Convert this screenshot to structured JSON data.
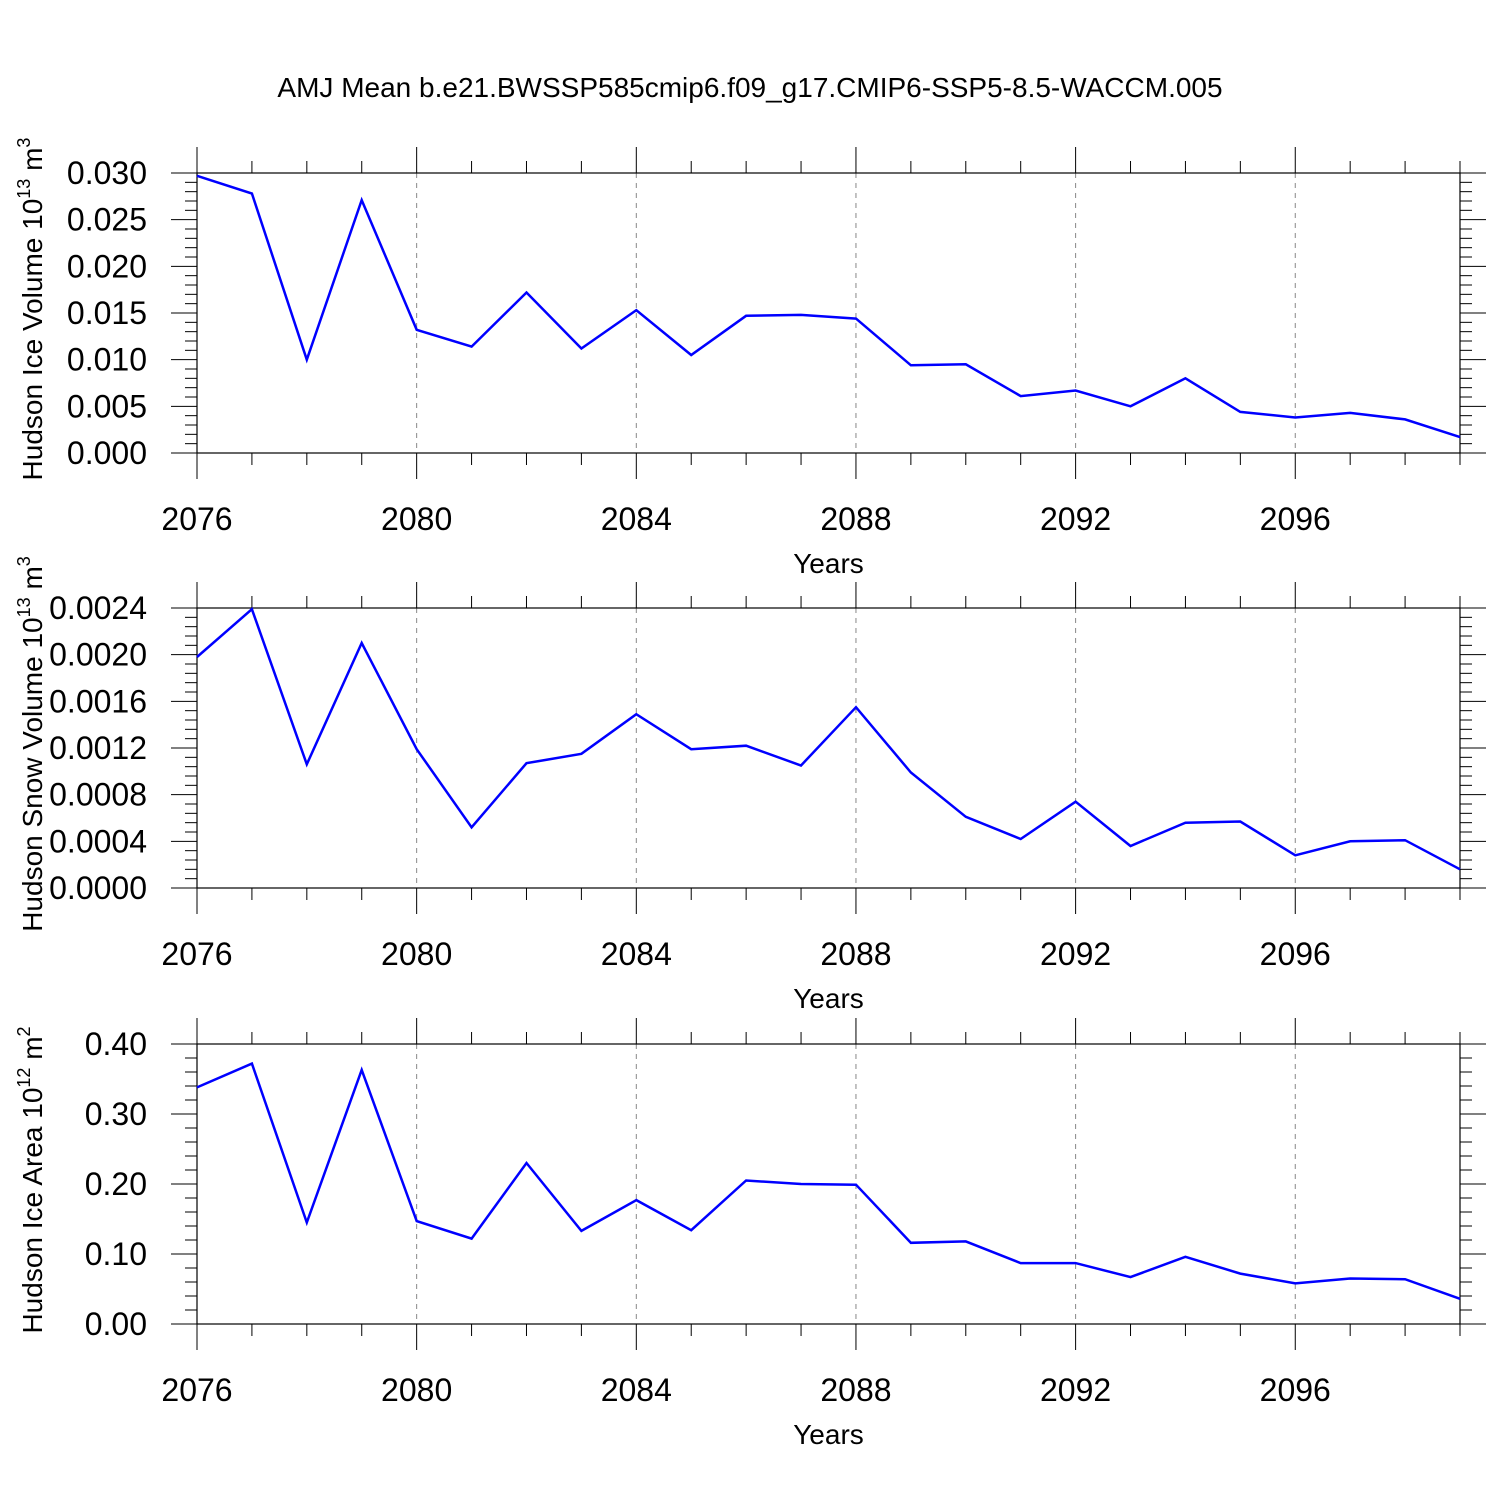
{
  "title": "AMJ Mean b.e21.BWSSP585cmip6.f09_g17.CMIP6-SSP5-8.5-WACCM.005",
  "colors": {
    "line": "#0000ff",
    "axis": "#000000",
    "grid": "#888888"
  },
  "chart_data": [
    {
      "type": "line",
      "ylabel_main": "Hudson Ice Volume 10",
      "ylabel_exp": "13",
      "ylabel_unit": "m",
      "ylabel_unit_exp": "3",
      "xlabel": "Years",
      "xlim": [
        2076,
        2099
      ],
      "ylim": [
        0,
        0.03
      ],
      "xticks": [
        2076,
        2080,
        2084,
        2088,
        2092,
        2096
      ],
      "yticks": [
        "0.000",
        "0.005",
        "0.010",
        "0.015",
        "0.020",
        "0.025",
        "0.030"
      ],
      "grid_x": true,
      "series": [
        {
          "x": [
            2076,
            2077,
            2078,
            2079,
            2080,
            2081,
            2082,
            2083,
            2084,
            2085,
            2086,
            2087,
            2088,
            2089,
            2090,
            2091,
            2092,
            2093,
            2094,
            2095,
            2096,
            2097,
            2098,
            2099
          ],
          "values": [
            0.0297,
            0.0278,
            0.01,
            0.0271,
            0.0132,
            0.0114,
            0.0172,
            0.0112,
            0.0153,
            0.0105,
            0.0147,
            0.0148,
            0.0144,
            0.0094,
            0.0095,
            0.0061,
            0.0067,
            0.005,
            0.008,
            0.0044,
            0.0038,
            0.0043,
            0.0036,
            0.0017
          ]
        }
      ]
    },
    {
      "type": "line",
      "ylabel_main": "Hudson Snow Volume 10",
      "ylabel_exp": "13",
      "ylabel_unit": "m",
      "ylabel_unit_exp": "3",
      "xlabel": "Years",
      "xlim": [
        2076,
        2099
      ],
      "ylim": [
        0,
        0.0024
      ],
      "xticks": [
        2076,
        2080,
        2084,
        2088,
        2092,
        2096
      ],
      "yticks": [
        "0.0000",
        "0.0004",
        "0.0008",
        "0.0012",
        "0.0016",
        "0.0020",
        "0.0024"
      ],
      "grid_x": true,
      "series": [
        {
          "x": [
            2076,
            2077,
            2078,
            2079,
            2080,
            2081,
            2082,
            2083,
            2084,
            2085,
            2086,
            2087,
            2088,
            2089,
            2090,
            2091,
            2092,
            2093,
            2094,
            2095,
            2096,
            2097,
            2098,
            2099
          ],
          "values": [
            0.00198,
            0.00239,
            0.00106,
            0.0021,
            0.00119,
            0.00052,
            0.00107,
            0.00115,
            0.00149,
            0.00119,
            0.00122,
            0.00105,
            0.00155,
            0.00099,
            0.00061,
            0.00042,
            0.00074,
            0.00036,
            0.00056,
            0.00057,
            0.00028,
            0.0004,
            0.00041,
            0.00016
          ]
        }
      ]
    },
    {
      "type": "line",
      "ylabel_main": "Hudson Ice Area 10",
      "ylabel_exp": "12",
      "ylabel_unit": "m",
      "ylabel_unit_exp": "2",
      "xlabel": "Years",
      "xlim": [
        2076,
        2099
      ],
      "ylim": [
        0,
        0.4
      ],
      "xticks": [
        2076,
        2080,
        2084,
        2088,
        2092,
        2096
      ],
      "yticks": [
        "0.00",
        "0.10",
        "0.20",
        "0.30",
        "0.40"
      ],
      "grid_x": true,
      "series": [
        {
          "x": [
            2076,
            2077,
            2078,
            2079,
            2080,
            2081,
            2082,
            2083,
            2084,
            2085,
            2086,
            2087,
            2088,
            2089,
            2090,
            2091,
            2092,
            2093,
            2094,
            2095,
            2096,
            2097,
            2098,
            2099
          ],
          "values": [
            0.338,
            0.372,
            0.145,
            0.363,
            0.147,
            0.122,
            0.23,
            0.133,
            0.177,
            0.134,
            0.205,
            0.2,
            0.199,
            0.116,
            0.118,
            0.087,
            0.087,
            0.067,
            0.096,
            0.072,
            0.058,
            0.065,
            0.064,
            0.036
          ]
        }
      ]
    }
  ]
}
